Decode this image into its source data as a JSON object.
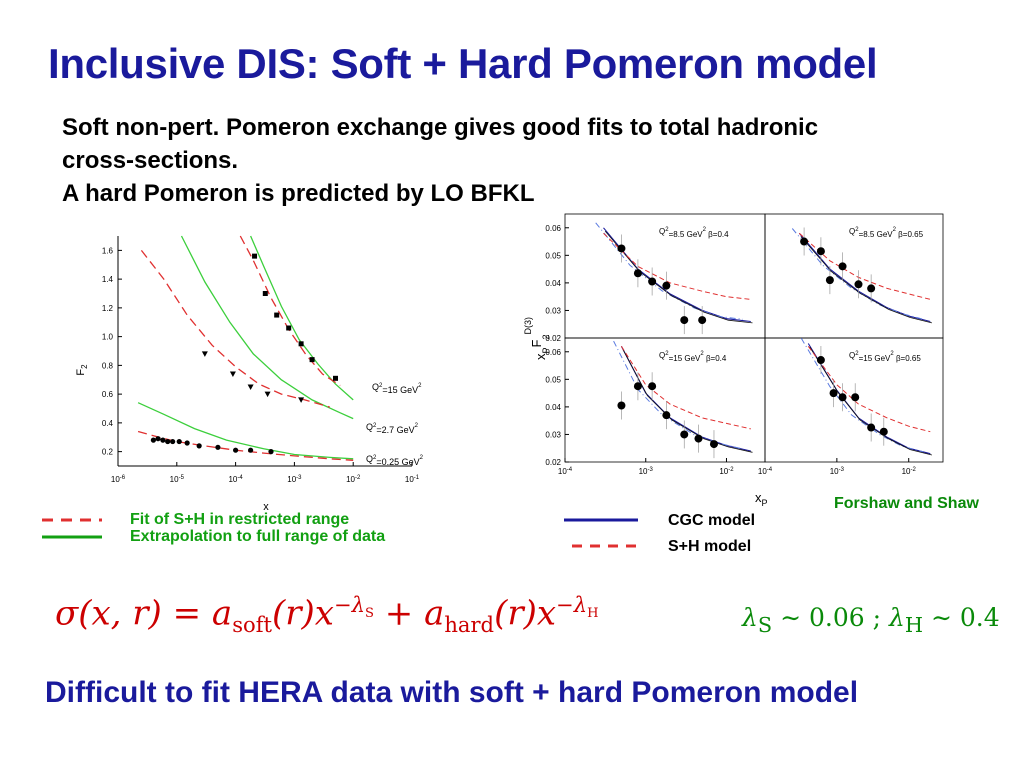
{
  "title": "Inclusive DIS: Soft + Hard Pomeron model",
  "intro": {
    "line1": "Soft non-pert. Pomeron exchange gives good fits to total hadronic",
    "line2": "cross-sections.",
    "line3": "A hard Pomeron is predicted by LO BFKL"
  },
  "left_legend": {
    "dashed_label": "Fit of S+H in restricted range",
    "solid_label": "Extrapolation to full range of data",
    "dashed_color": "#e03030",
    "solid_color": "#12a012"
  },
  "right_legend": {
    "solid_label": "CGC model",
    "dashed_label": "S+H model",
    "solid_color": "#1a1a9c",
    "dashed_color": "#e03030"
  },
  "credit": "Forshaw and Shaw",
  "formula": {
    "lhs": "σ(x, r)",
    "eq": "=",
    "a": "a",
    "soft_sub": "soft",
    "hard_sub": "hard",
    "r": "(r)",
    "x": "x",
    "exp_soft": "−λ",
    "exp_soft_sub": "S",
    "plus": "+",
    "exp_hard": "−λ",
    "exp_hard_sub": "H"
  },
  "lambdas": {
    "text_s": "λ",
    "sub_s": "S",
    "rel_s": "∼ 0.06 ;",
    "text_h": "λ",
    "sub_h": "H",
    "rel_h": "∼ 0.4"
  },
  "conclusion": "Difficult to fit HERA data with soft + hard Pomeron model",
  "chart_data": [
    {
      "type": "scatter",
      "title": "",
      "xlabel": "x",
      "ylabel": "F2",
      "xscale": "log",
      "xlim": [
        1e-06,
        0.1
      ],
      "ylim": [
        0.1,
        1.7
      ],
      "xticks": [
        "10-6",
        "10-5",
        "10-4",
        "10-3",
        "10-2",
        "10-1"
      ],
      "yticks": [
        "0.2",
        "0.4",
        "0.6",
        "0.8",
        "1.0",
        "1.2",
        "1.4",
        "1.6"
      ],
      "series": [
        {
          "name": "Q2=15 GeV2",
          "points": [
            [
              0.00021,
              1.56
            ],
            [
              0.00032,
              1.3
            ],
            [
              0.0005,
              1.15
            ],
            [
              0.0008,
              1.06
            ],
            [
              0.0013,
              0.95
            ],
            [
              0.002,
              0.84
            ],
            [
              0.005,
              0.71
            ]
          ],
          "fit": [
            [
              0.00012,
              1.7
            ],
            [
              0.0002,
              1.53
            ],
            [
              0.0004,
              1.27
            ],
            [
              0.0008,
              1.05
            ],
            [
              0.0016,
              0.87
            ],
            [
              0.003,
              0.74
            ],
            [
              0.006,
              0.66
            ]
          ],
          "extrapolation": [
            [
              0.00018,
              1.7
            ],
            [
              0.0003,
              1.49
            ],
            [
              0.0006,
              1.21
            ],
            [
              0.0012,
              0.98
            ],
            [
              0.0025,
              0.81
            ],
            [
              0.005,
              0.67
            ],
            [
              0.01,
              0.56
            ]
          ]
        },
        {
          "name": "Q2=2.7 GeV2",
          "points": [
            [
              3e-05,
              0.88
            ],
            [
              9e-05,
              0.74
            ],
            [
              0.00018,
              0.65
            ],
            [
              0.00035,
              0.6
            ],
            [
              0.0013,
              0.56
            ]
          ],
          "fit": [
            [
              2.5e-06,
              1.6
            ],
            [
              6e-06,
              1.4
            ],
            [
              1.5e-05,
              1.15
            ],
            [
              4e-05,
              0.94
            ],
            [
              0.0001,
              0.79
            ],
            [
              0.00025,
              0.67
            ],
            [
              0.0006,
              0.6
            ],
            [
              0.0015,
              0.56
            ],
            [
              0.004,
              0.51
            ]
          ],
          "extrapolation": [
            [
              1.2e-05,
              1.7
            ],
            [
              3e-05,
              1.38
            ],
            [
              8e-05,
              1.1
            ],
            [
              0.0002,
              0.88
            ],
            [
              0.0006,
              0.7
            ],
            [
              0.002,
              0.56
            ],
            [
              0.006,
              0.47
            ],
            [
              0.01,
              0.43
            ]
          ]
        },
        {
          "name": "Q2=0.25 GeV2",
          "points": [
            [
              4e-06,
              0.28
            ],
            [
              4.8e-06,
              0.29
            ],
            [
              5.8e-06,
              0.28
            ],
            [
              7e-06,
              0.27
            ],
            [
              8.5e-06,
              0.27
            ],
            [
              1.1e-05,
              0.27
            ],
            [
              1.5e-05,
              0.26
            ],
            [
              2.4e-05,
              0.24
            ],
            [
              5e-05,
              0.23
            ],
            [
              0.0001,
              0.21
            ],
            [
              0.00018,
              0.21
            ],
            [
              0.0004,
              0.2
            ]
          ],
          "fit": [
            [
              2.2e-06,
              0.34
            ],
            [
              5e-06,
              0.3
            ],
            [
              1e-05,
              0.27
            ],
            [
              3e-05,
              0.24
            ],
            [
              0.0001,
              0.21
            ],
            [
              0.0003,
              0.19
            ],
            [
              0.001,
              0.17
            ],
            [
              0.004,
              0.15
            ],
            [
              0.01,
              0.14
            ]
          ],
          "extrapolation": [
            [
              2.2e-06,
              0.54
            ],
            [
              6e-06,
              0.46
            ],
            [
              2e-05,
              0.36
            ],
            [
              7e-05,
              0.28
            ],
            [
              0.0003,
              0.22
            ],
            [
              0.001,
              0.18
            ],
            [
              0.004,
              0.16
            ],
            [
              0.01,
              0.15
            ]
          ]
        }
      ],
      "labels": [
        "Q2=15 GeV2",
        "Q2=2.7 GeV2",
        "Q2=0.25 GeV2"
      ]
    },
    {
      "type": "scatter",
      "title": "",
      "xlabel": "xP",
      "ylabel": "xP F2 D(3)",
      "xscale": "log",
      "xlim": [
        0.0001,
        0.03
      ],
      "ylim": [
        0.02,
        0.065
      ],
      "xticks": [
        "10-4",
        "10-3",
        "10-2"
      ],
      "yticks": [
        "0.02",
        "0.03",
        "0.04",
        "0.05",
        "0.06"
      ],
      "panels": [
        {
          "label": "Q2=8.5 GeV2 β=0.4",
          "points": [
            [
              0.0005,
              0.0525
            ],
            [
              0.0008,
              0.0435
            ],
            [
              0.0012,
              0.0405
            ],
            [
              0.0018,
              0.039
            ],
            [
              0.003,
              0.0265
            ],
            [
              0.005,
              0.0265
            ]
          ],
          "cgc": [
            [
              0.0003,
              0.06
            ],
            [
              0.0008,
              0.045
            ],
            [
              0.002,
              0.036
            ],
            [
              0.005,
              0.03
            ],
            [
              0.01,
              0.027
            ],
            [
              0.02,
              0.026
            ]
          ],
          "sh": [
            [
              0.0003,
              0.058
            ],
            [
              0.0008,
              0.046
            ],
            [
              0.002,
              0.04
            ],
            [
              0.005,
              0.037
            ],
            [
              0.01,
              0.035
            ],
            [
              0.02,
              0.034
            ]
          ]
        },
        {
          "label": "Q2=8.5 GeV2 β=0.65",
          "points": [
            [
              0.00035,
              0.055
            ],
            [
              0.0006,
              0.0515
            ],
            [
              0.0008,
              0.041
            ],
            [
              0.0012,
              0.046
            ],
            [
              0.002,
              0.0395
            ],
            [
              0.003,
              0.038
            ]
          ],
          "cgc": [
            [
              0.0003,
              0.058
            ],
            [
              0.0008,
              0.045
            ],
            [
              0.002,
              0.037
            ],
            [
              0.005,
              0.031
            ],
            [
              0.01,
              0.028
            ],
            [
              0.02,
              0.026
            ]
          ],
          "sh": [
            [
              0.0003,
              0.058
            ],
            [
              0.0008,
              0.048
            ],
            [
              0.002,
              0.042
            ],
            [
              0.005,
              0.038
            ],
            [
              0.01,
              0.036
            ],
            [
              0.02,
              0.034
            ]
          ]
        },
        {
          "label": "Q2=15 GeV2 β=0.4",
          "points": [
            [
              0.0005,
              0.0405
            ],
            [
              0.0008,
              0.0475
            ],
            [
              0.0012,
              0.0475
            ],
            [
              0.0018,
              0.037
            ],
            [
              0.003,
              0.03
            ],
            [
              0.0045,
              0.0285
            ],
            [
              0.007,
              0.0265
            ]
          ],
          "cgc": [
            [
              0.0005,
              0.062
            ],
            [
              0.001,
              0.045
            ],
            [
              0.002,
              0.036
            ],
            [
              0.005,
              0.029
            ],
            [
              0.01,
              0.026
            ],
            [
              0.02,
              0.024
            ]
          ],
          "sh": [
            [
              0.0005,
              0.062
            ],
            [
              0.001,
              0.048
            ],
            [
              0.002,
              0.041
            ],
            [
              0.005,
              0.036
            ],
            [
              0.01,
              0.034
            ],
            [
              0.02,
              0.032
            ]
          ]
        },
        {
          "label": "Q2=15 GeV2 β=0.65",
          "points": [
            [
              0.0006,
              0.057
            ],
            [
              0.0009,
              0.045
            ],
            [
              0.0012,
              0.0435
            ],
            [
              0.0018,
              0.0435
            ],
            [
              0.003,
              0.0325
            ],
            [
              0.0045,
              0.031
            ]
          ],
          "cgc": [
            [
              0.0004,
              0.063
            ],
            [
              0.001,
              0.046
            ],
            [
              0.002,
              0.036
            ],
            [
              0.005,
              0.029
            ],
            [
              0.01,
              0.025
            ],
            [
              0.02,
              0.023
            ]
          ],
          "sh": [
            [
              0.0004,
              0.062
            ],
            [
              0.001,
              0.048
            ],
            [
              0.002,
              0.041
            ],
            [
              0.005,
              0.036
            ],
            [
              0.01,
              0.033
            ],
            [
              0.02,
              0.031
            ]
          ]
        }
      ]
    }
  ]
}
